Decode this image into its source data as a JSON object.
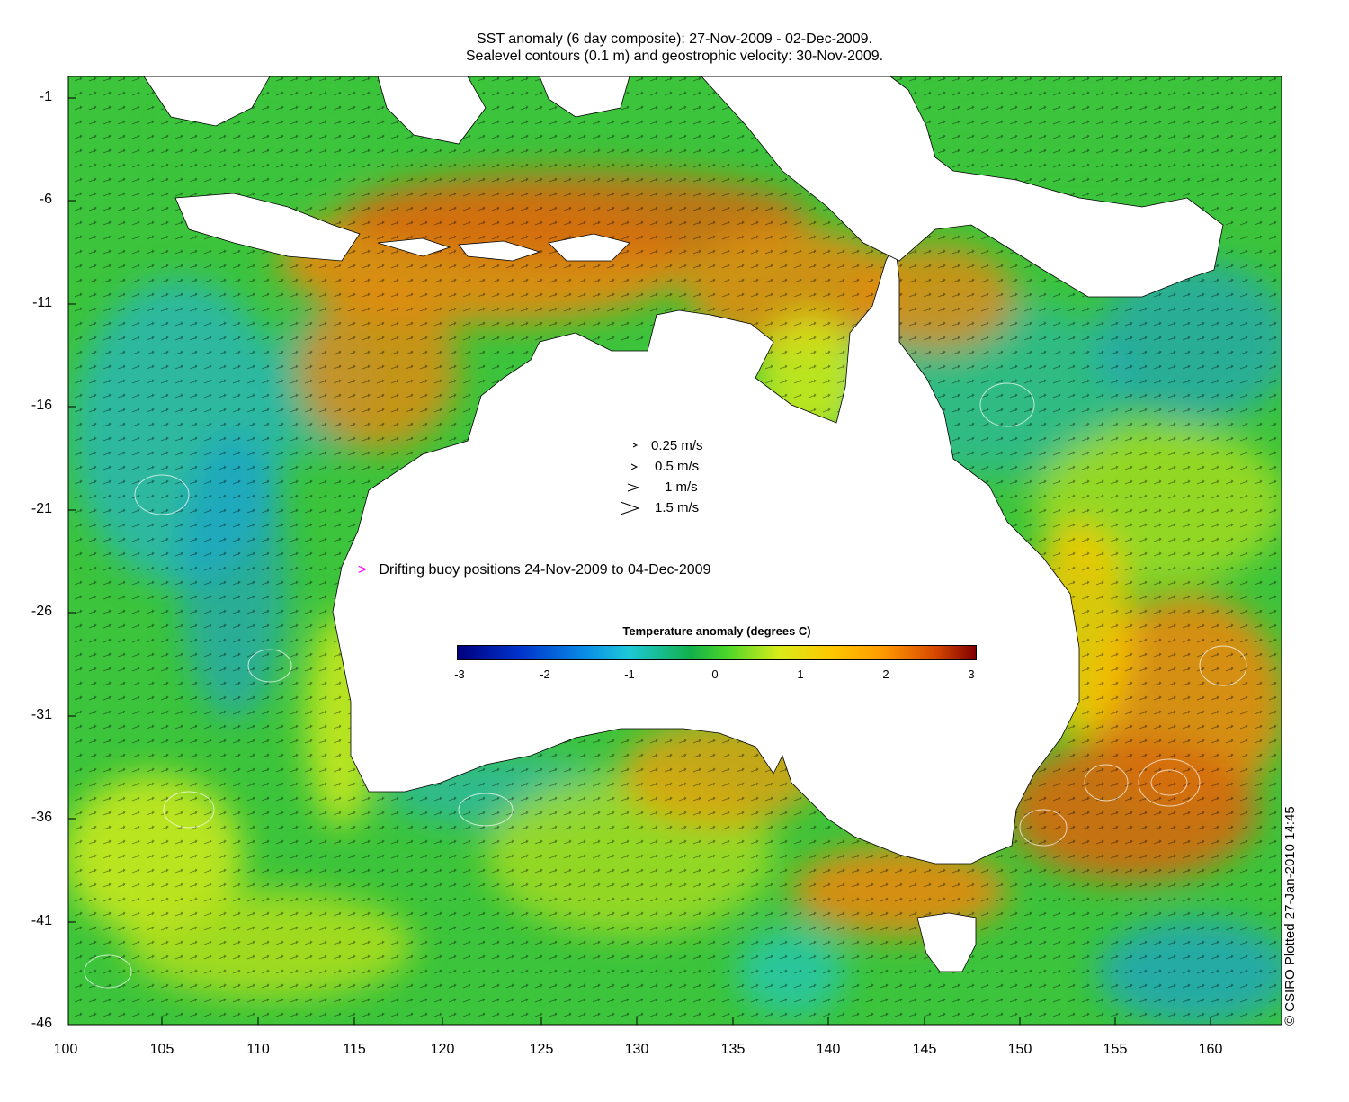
{
  "title": {
    "line1": "SST anomaly (6 day composite): 27-Nov-2009 - 02-Dec-2009.",
    "line2": "Sealevel contours (0.1 m) and geostrophic velocity: 30-Nov-2009."
  },
  "colors": {
    "land": "#ffffff",
    "buoy": "#ff00ff",
    "ocean_warm": "#e68a12",
    "ocean_neutral": "#3cc43c",
    "ocean_cool": "#2ab6b0"
  },
  "velocity_legend": [
    {
      "label": "0.25 m/s"
    },
    {
      "label": "0.5 m/s"
    },
    {
      "label": "1 m/s"
    },
    {
      "label": "1.5 m/s"
    }
  ],
  "buoy_label": "Drifting buoy positions 24-Nov-2009 to 04-Dec-2009",
  "colorbar": {
    "title": "Temperature anomaly (degrees C)",
    "min": -3,
    "max": 3,
    "ticks": [
      "-3",
      "-2",
      "-1",
      "0",
      "1",
      "2",
      "3"
    ]
  },
  "axes": {
    "lat_range": [
      -46,
      -1
    ],
    "lon_range": [
      100,
      164
    ],
    "y_ticks": [
      "-1",
      "-6",
      "-11",
      "-16",
      "-21",
      "-26",
      "-31",
      "-36",
      "-41",
      "-46"
    ],
    "x_ticks": [
      "100",
      "105",
      "110",
      "115",
      "120",
      "125",
      "130",
      "135",
      "140",
      "145",
      "150",
      "155",
      "160"
    ]
  },
  "credit": "© CSIRO Plotted 27-Jan-2010 14:45"
}
